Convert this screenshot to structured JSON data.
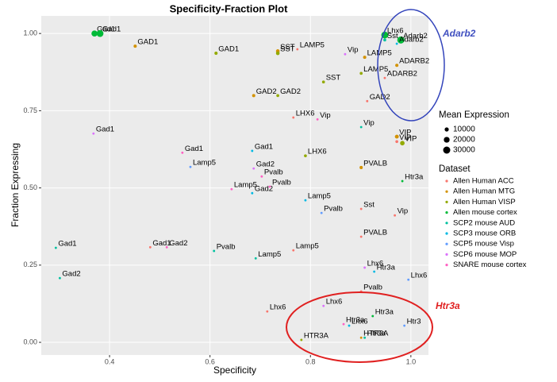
{
  "chart_data": {
    "type": "scatter",
    "title": "Specificity-Fraction Plot",
    "x_label": "Specificity",
    "y_label": "Fraction Expressing",
    "xlim": [
      0.264,
      1.035
    ],
    "ylim": [
      -0.041,
      1.057
    ],
    "xticks": [
      0.4,
      0.6,
      0.8,
      {
        "value": 1,
        "label": "1.0"
      }
    ],
    "yticks": [
      {
        "value": 0,
        "label": "0.00"
      },
      {
        "value": 0.25,
        "label": "0.25"
      },
      {
        "value": 0.5,
        "label": "0.50"
      },
      {
        "value": 0.75,
        "label": "0.75"
      },
      {
        "value": 1,
        "label": "1.00"
      }
    ],
    "grid": true,
    "annotations": [
      "Adarb2",
      "Htr3a"
    ],
    "size_legend": {
      "title": "Mean Expression",
      "values": [
        10000,
        20000,
        30000
      ]
    },
    "legend_title": "Dataset",
    "series": [
      {
        "name": "Allen Human ACC",
        "color": "#F8766D",
        "x": [
          0.774,
          0.913,
          0.948,
          0.972,
          0.766,
          0.901,
          0.968,
          0.901,
          0.766,
          0.901,
          0.481,
          0.714
        ],
        "values": [
          0.949,
          0.781,
          0.856,
          0.65,
          0.728,
          0.432,
          0.411,
          0.342,
          0.298,
          0.165,
          0.308,
          0.1
        ],
        "sizes": [
          3000,
          3000,
          3000,
          5000,
          3000,
          3000,
          3000,
          3000,
          3000,
          3000,
          3000,
          3000
        ],
        "labels": [
          "LAMP5",
          "GAD2",
          "ADARB2",
          "VIP",
          "LHX6",
          "Sst",
          "Vip",
          "PVALB",
          "Lamp5",
          "Pvalb",
          "Gad1",
          "Lhx6"
        ]
      },
      {
        "name": "Allen Human MTG",
        "color": "#D39200",
        "x": [
          0.451,
          0.735,
          0.687,
          0.901,
          0.972,
          0.901,
          0.972,
          0.908
        ],
        "values": [
          0.959,
          0.943,
          0.799,
          0.566,
          0.666,
          0.015,
          0.897,
          0.923
        ],
        "sizes": [
          6000,
          8000,
          6000,
          6000,
          9000,
          3000,
          6000,
          6000
        ],
        "labels": [
          "GAD1",
          "SST",
          "GAD2",
          "PVALB",
          "VIP",
          "HTR3A",
          "ADARB2",
          "LAMP5"
        ]
      },
      {
        "name": "Allen Human VISP",
        "color": "#93AA00",
        "x": [
          0.612,
          0.735,
          0.735,
          0.826,
          0.901,
          0.79,
          0.983,
          0.782
        ],
        "values": [
          0.936,
          0.936,
          0.799,
          0.843,
          0.871,
          0.604,
          0.645,
          0.008
        ],
        "sizes": [
          6000,
          8000,
          5000,
          5000,
          5000,
          5000,
          12000,
          3000
        ],
        "labels": [
          "GAD1",
          "SST",
          "GAD2",
          "SST",
          "LAMP5",
          "LHX6",
          "VIP",
          "HTR3A"
        ]
      },
      {
        "name": "Allen mouse cortex",
        "color": "#00BA38",
        "x": [
          0.37,
          0.381,
          0.948,
          0.98,
          0.983,
          0.924
        ],
        "values": [
          1.0,
          1.0,
          0.995,
          0.979,
          0.522,
          0.085
        ],
        "sizes": [
          22000,
          28000,
          28000,
          30000,
          3000,
          3000
        ],
        "labels": [
          "Gad1",
          "Gad1",
          "Lhx6",
          "Adarb2",
          "Htr3a",
          "Htr3a"
        ]
      },
      {
        "name": "SCP2 mouse AUD",
        "color": "#00C19F",
        "x": [
          0.293,
          0.301,
          0.608,
          0.691,
          0.901,
          0.908,
          0.948
        ],
        "values": [
          0.306,
          0.208,
          0.296,
          0.272,
          0.697,
          0.015,
          0.979
        ],
        "sizes": [
          3000,
          3000,
          3000,
          3000,
          3000,
          3000,
          5000
        ],
        "labels": [
          "Gad1",
          "Gad2",
          "Pvalb",
          "Lamp5",
          "Vip",
          "Htr3a",
          "Sst"
        ]
      },
      {
        "name": "SCP3 mouse ORB",
        "color": "#00B9E3",
        "x": [
          0.684,
          0.684,
          0.79,
          0.877,
          0.927,
          0.972
        ],
        "values": [
          0.62,
          0.483,
          0.46,
          0.054,
          0.229,
          0.967
        ],
        "sizes": [
          3000,
          3000,
          3000,
          3000,
          3000,
          3000
        ],
        "labels": [
          "Gad1",
          "Gad2",
          "Lamp5",
          "Lhx6",
          "Htr3a",
          "Adarb2"
        ]
      },
      {
        "name": "SCP5 mouse Visp",
        "color": "#619CFF",
        "x": [
          0.561,
          0.822,
          0.995,
          0.987
        ],
        "values": [
          0.568,
          0.419,
          0.203,
          0.054
        ],
        "sizes": [
          3000,
          3000,
          3000,
          3000
        ],
        "labels": [
          "Lamp5",
          "Pvalb",
          "Lhx6",
          "Htr3"
        ]
      },
      {
        "name": "SCP6 mouse MOP",
        "color": "#DB72FB",
        "x": [
          0.368,
          0.687,
          0.869,
          0.826,
          0.908
        ],
        "values": [
          0.676,
          0.563,
          0.933,
          0.118,
          0.242
        ],
        "sizes": [
          3000,
          3000,
          3000,
          3000,
          3000
        ],
        "labels": [
          "Gad1",
          "Gad2",
          "Vip",
          "Lhx6",
          "Lhx6"
        ]
      },
      {
        "name": "SNARE mouse cortex",
        "color": "#FF61C3",
        "x": [
          0.545,
          0.643,
          0.703,
          0.719,
          0.814,
          0.514,
          0.866
        ],
        "values": [
          0.614,
          0.496,
          0.537,
          0.504,
          0.722,
          0.308,
          0.059
        ],
        "sizes": [
          3000,
          3000,
          3000,
          3000,
          3000,
          3000,
          3000
        ],
        "labels": [
          "Gad1",
          "Lamp5",
          "Pvalb",
          "Pvalb",
          "Vip",
          "Gad2",
          "Htr3a"
        ]
      }
    ]
  }
}
